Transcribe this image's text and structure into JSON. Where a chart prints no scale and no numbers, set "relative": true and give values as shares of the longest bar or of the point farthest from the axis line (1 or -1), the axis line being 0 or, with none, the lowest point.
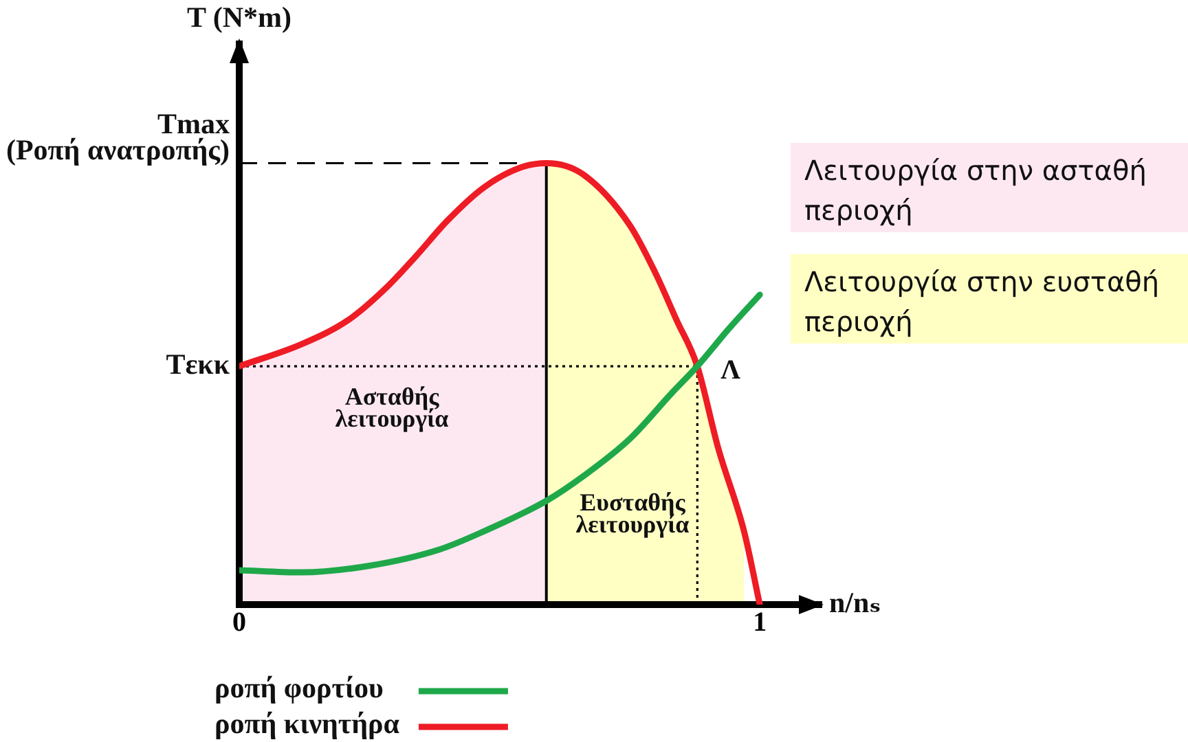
{
  "chart_data": {
    "type": "line",
    "ylabel": "T (N*m)",
    "xlabel": "n/nₛ",
    "relative": true,
    "grid": false,
    "legend": "bottom left",
    "xlim": [
      0,
      1.12
    ],
    "xticks": [
      0,
      1
    ],
    "series": [
      {
        "name": "ροπή φορτίου",
        "color": "#1fa84a",
        "x": [
          0,
          0.12,
          0.25,
          0.385,
          0.47,
          0.59,
          0.66,
          0.75,
          0.83,
          0.88,
          0.94,
          1.0
        ],
        "values": [
          0.078,
          0.073,
          0.088,
          0.125,
          0.166,
          0.235,
          0.29,
          0.375,
          0.478,
          0.54,
          0.624,
          0.702
        ]
      },
      {
        "name": "ροπή κινητήρα",
        "color": "#ee1c25",
        "x": [
          0,
          0.12,
          0.21,
          0.28,
          0.34,
          0.4,
          0.47,
          0.54,
          0.59,
          0.66,
          0.75,
          0.8,
          0.84,
          0.88,
          0.92,
          0.97,
          1.0
        ],
        "values": [
          0.54,
          0.59,
          0.645,
          0.715,
          0.79,
          0.87,
          0.945,
          0.99,
          1,
          0.975,
          0.86,
          0.75,
          0.645,
          0.54,
          0.355,
          0.165,
          0
        ]
      },
      {
        "name": "Λειτουργία στην ασταθή περιοχή",
        "type": "area",
        "color": "#fde8f2",
        "x": [
          0,
          0.12,
          0.21,
          0.28,
          0.34,
          0.4,
          0.47,
          0.54,
          0.59
        ],
        "values": [
          0.54,
          0.59,
          0.645,
          0.715,
          0.79,
          0.87,
          0.945,
          0.99,
          1
        ]
      },
      {
        "name": "Λειτουργία στην ευσταθή περιοχή",
        "type": "area",
        "color": "#ffffc4",
        "x": [
          0.59,
          0.66,
          0.75,
          0.8,
          0.84,
          0.88,
          0.92,
          0.97
        ],
        "values": [
          1,
          0.975,
          0.86,
          0.75,
          0.645,
          0.54,
          0.355,
          0.165
        ]
      }
    ],
    "ref_lines": [
      {
        "axis": "y",
        "value": 1,
        "label": "Tmax\n(Ροπή ανατροπής)",
        "line_style": "dashed",
        "color": "#000000"
      },
      {
        "axis": "y",
        "value": 0.54,
        "label": "Tεκκ",
        "line_style": "dotted",
        "color": "#000000"
      },
      {
        "axis": "x",
        "value": 0.59,
        "line_style": "solid",
        "color": "#000000"
      },
      {
        "axis": "x",
        "value": 0.88,
        "line_style": "dotted",
        "color": "#000000"
      }
    ],
    "annotations": [
      "Ασταθής\nλειτουργία",
      "Ευσταθής\nλειτουργία",
      {
        "text": "Λ",
        "x": 0.88,
        "y": 0.54
      }
    ]
  }
}
